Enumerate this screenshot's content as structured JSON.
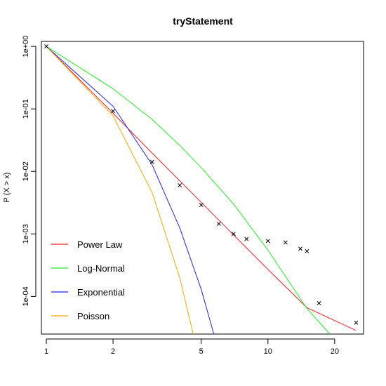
{
  "chart_data": {
    "type": "line",
    "title": "tryStatement",
    "xlabel": "",
    "ylabel": "P (X > x)",
    "x_scale": "log",
    "y_scale": "log",
    "xlim": [
      0.95,
      27
    ],
    "ylim": [
      2.5e-05,
      1.2
    ],
    "x_ticks": [
      1,
      2,
      5,
      10,
      20
    ],
    "y_ticks": [
      {
        "value": 1,
        "label": "1e+00"
      },
      {
        "value": 0.1,
        "label": "1e-01"
      },
      {
        "value": 0.01,
        "label": "1e-02"
      },
      {
        "value": 0.001,
        "label": "1e-03"
      },
      {
        "value": 0.0001,
        "label": "1e-04"
      }
    ],
    "legend_position": "bottom-left",
    "points": {
      "marker": "x",
      "color": "#000000",
      "x": [
        1,
        2,
        3,
        4,
        5,
        6,
        7,
        8,
        10,
        12,
        14,
        15,
        17,
        25
      ],
      "y": [
        1,
        0.092,
        0.0142,
        0.006,
        0.0029,
        0.00145,
        0.001,
        0.00083,
        0.00077,
        0.00073,
        0.00058,
        0.00053,
        7.8e-05,
        3.8e-05
      ]
    },
    "series": [
      {
        "name": "Power Law",
        "color": "#ee2222",
        "x": [
          1,
          2,
          3,
          5,
          10,
          15,
          25
        ],
        "y": [
          1,
          0.085,
          0.0197,
          0.0032,
          0.00027,
          6.6e-05,
          2.85e-05
        ]
      },
      {
        "name": "Log-Normal",
        "color": "#22ee22",
        "x": [
          1,
          2,
          3,
          4,
          5,
          7,
          10,
          15,
          19
        ],
        "y": [
          1,
          0.21,
          0.068,
          0.026,
          0.0115,
          0.003,
          0.00055,
          6.4e-05,
          2.5e-05
        ]
      },
      {
        "name": "Exponential",
        "color": "#2222ee",
        "x": [
          1,
          2,
          3,
          4,
          5,
          5.7
        ],
        "y": [
          1,
          0.11,
          0.0128,
          0.00125,
          0.00013,
          2.5e-05
        ]
      },
      {
        "name": "Poisson",
        "color": "#ffa500",
        "x": [
          1,
          2,
          3,
          4,
          4.6
        ],
        "y": [
          1,
          0.077,
          0.0046,
          0.0002,
          2.5e-05
        ]
      }
    ]
  }
}
